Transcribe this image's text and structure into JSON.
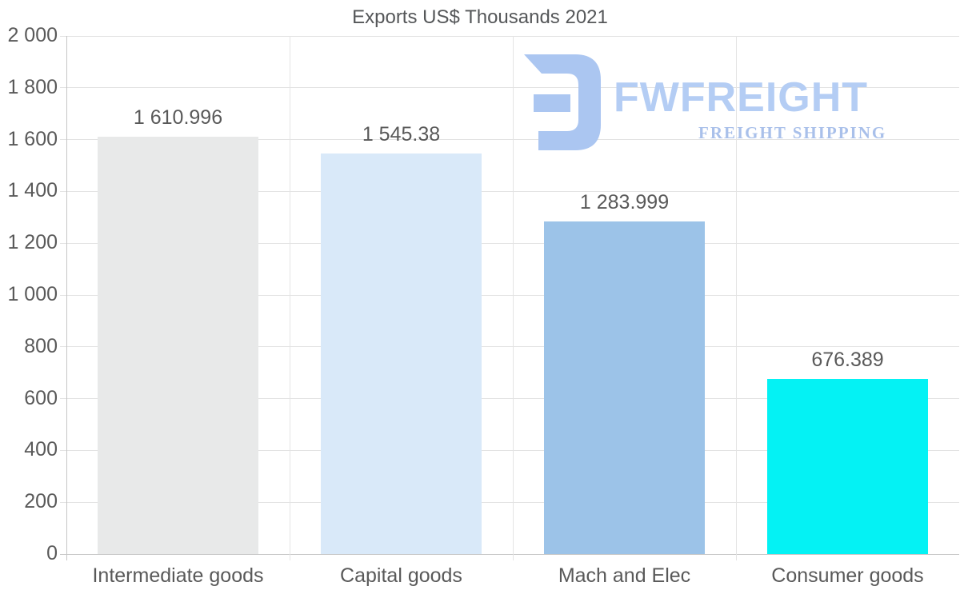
{
  "title": "Exports US$ Thousands 2021",
  "watermark": {
    "brand": "FWFREIGHT",
    "tagline": "FREIGHT SHIPPING",
    "icon": "fwfreight-logo-icon",
    "icon_color": "#abc6f1",
    "brand_color": "#b4cdf4",
    "tagline_color": "#a9c0ea"
  },
  "chart_data": {
    "type": "bar",
    "title": "Exports US$ Thousands 2021",
    "categories": [
      "Intermediate goods",
      "Capital goods",
      "Mach and Elec",
      "Consumer goods"
    ],
    "values": [
      1610.996,
      1545.38,
      1283.999,
      676.389
    ],
    "value_labels": [
      "1 610.996",
      "1 545.38",
      "1 283.999",
      "676.389"
    ],
    "bar_colors": [
      "#e8e9e9",
      "#d9e9f9",
      "#9cc3e8",
      "#04f2f4"
    ],
    "xlabel": "",
    "ylabel": "",
    "ylim": [
      0,
      2000
    ],
    "ytick_step": 200,
    "ytick_labels": [
      "0",
      "200",
      "400",
      "600",
      "800",
      "1 000",
      "1 200",
      "1 400",
      "1 600",
      "1 800",
      "2 000"
    ],
    "grid": "horizontal gridlines at each y tick, vertical category separators",
    "legend": "none",
    "text_color": "#595959",
    "grid_color": "#e3e3e3",
    "axis_color": "#c6c6c6",
    "background": "#ffffff"
  }
}
